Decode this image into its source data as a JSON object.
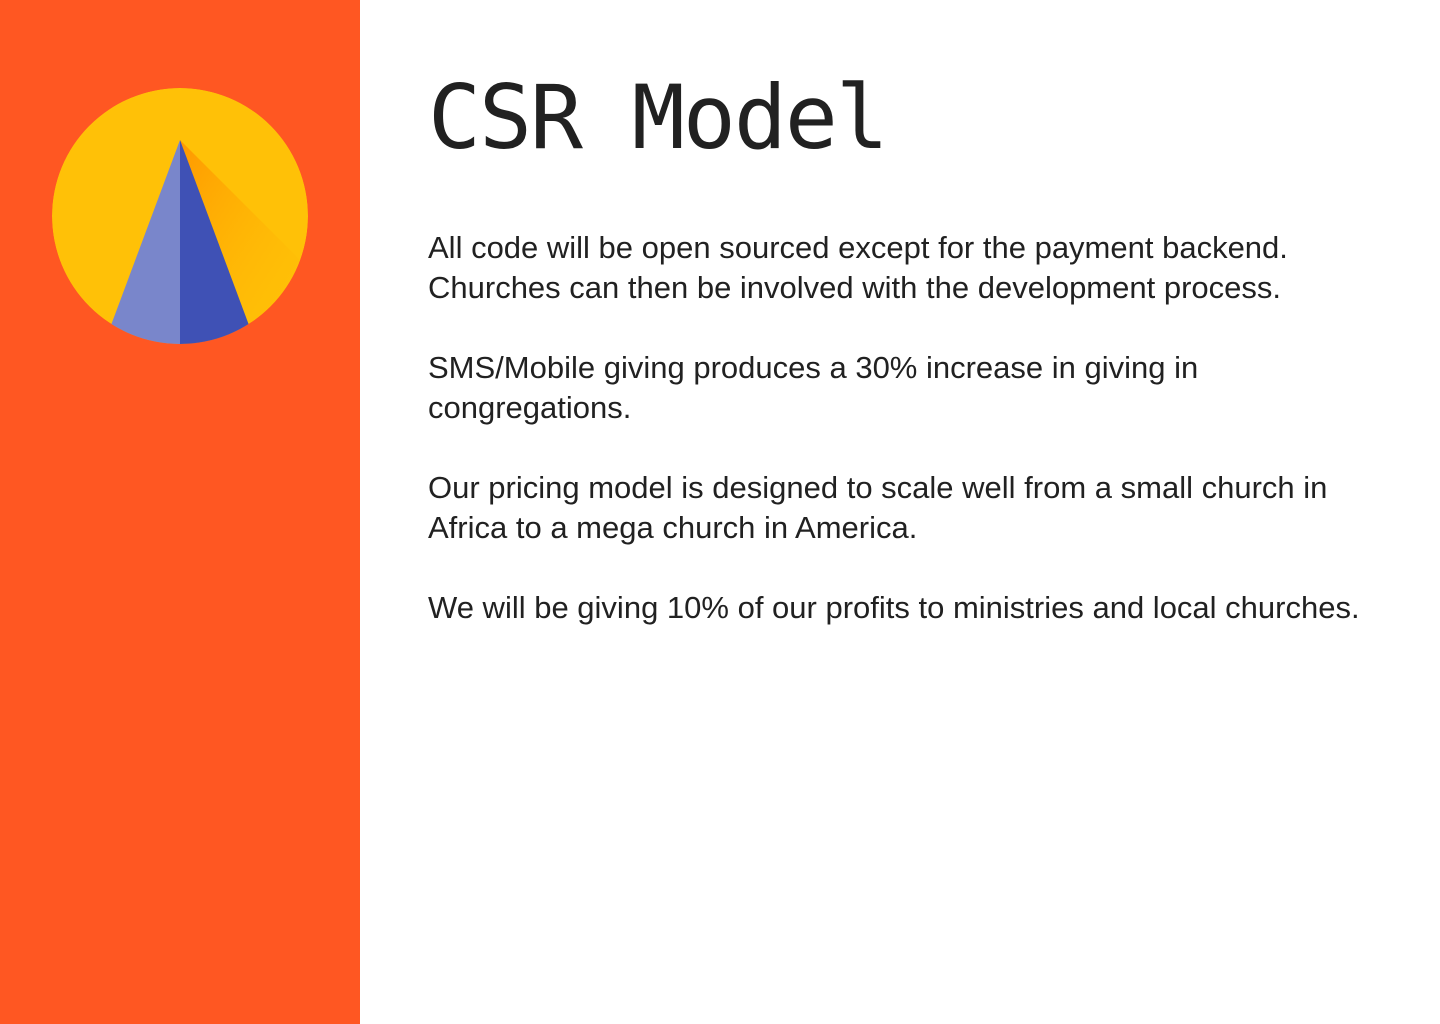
{
  "slide": {
    "title": "CSR Model",
    "logo_icon": "pyramid-sun-logo-icon",
    "paragraphs": [
      "All code will be open sourced except for the payment backend. Churches can then be involved with the development process.",
      "SMS/Mobile giving produces a 30% increase in giving in congregations.",
      "Our pricing model is designed to scale well from a small church in Africa to a mega church in America.",
      "We will be giving 10% of our profits to ministries and local churches."
    ]
  },
  "colors": {
    "sidebar": "#ff5722",
    "sun": "#ffc107",
    "pyramid_light": "#7986cb",
    "pyramid_dark": "#3f51b5",
    "text": "#212121"
  }
}
